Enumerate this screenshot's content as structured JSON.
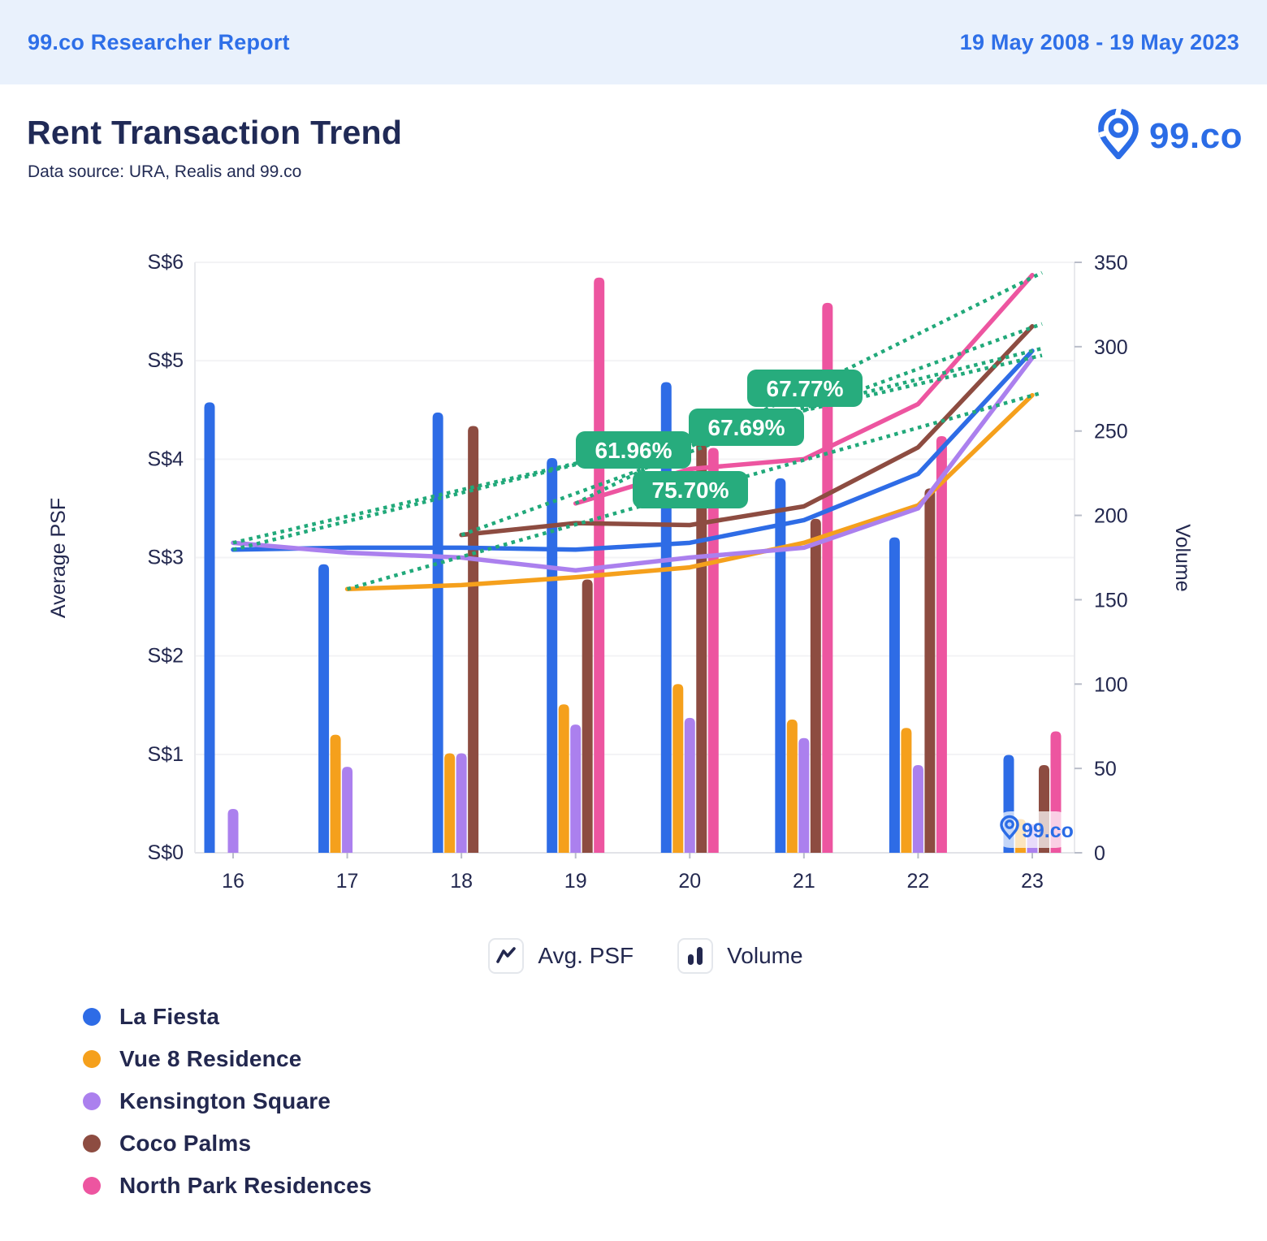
{
  "banner": {
    "left_text": "99.co Researcher Report",
    "right_text": "19 May 2008 - 19 May 2023"
  },
  "header": {
    "title": "Rent Transaction Trend",
    "subtitle": "Data source: URA, Realis and 99.co",
    "brand": "99.co"
  },
  "mode_legend": [
    {
      "label": "Avg. PSF",
      "icon": "line-chart-icon"
    },
    {
      "label": "Volume",
      "icon": "bar-chart-icon"
    }
  ],
  "watermark": {
    "text": "99.co"
  },
  "colors": {
    "banner_bg": "#e9f1fc",
    "banner_text": "#2e6fe8",
    "navy": "#23284f",
    "brand_blue": "#2b6ce6",
    "pill_green": "#27ac7d",
    "trend_green": "#21a97a",
    "grid": "#f3f3f5",
    "axis": "#e8e9ed",
    "tick": "#b9bdc9"
  },
  "chart_data": {
    "type": "combo bar+line",
    "x_labels": [
      "16",
      "17",
      "18",
      "19",
      "20",
      "21",
      "22",
      "23"
    ],
    "left_axis": {
      "title": "Average PSF",
      "tick_labels": [
        "S$0",
        "S$1",
        "S$2",
        "S$3",
        "S$4",
        "S$5",
        "S$6"
      ],
      "min": 0,
      "max": 6
    },
    "right_axis": {
      "title": "Volume",
      "tick_labels": [
        "0",
        "50",
        "100",
        "150",
        "200",
        "250",
        "300",
        "350"
      ],
      "min": 0,
      "max": 350
    },
    "grid": true,
    "legend_position": "bottom",
    "series": [
      {
        "name": "La Fiesta",
        "color": "#2e6ce6",
        "avg_psf": [
          3.08,
          3.1,
          3.1,
          3.08,
          3.15,
          3.38,
          3.85,
          5.1
        ],
        "volume": [
          267,
          171,
          261,
          234,
          279,
          222,
          187,
          58
        ]
      },
      {
        "name": "Vue 8 Residence",
        "color": "#f5a01c",
        "avg_psf": [
          null,
          2.68,
          2.72,
          2.8,
          2.9,
          3.15,
          3.53,
          4.65
        ],
        "volume": [
          null,
          70,
          59,
          88,
          100,
          79,
          74,
          20
        ]
      },
      {
        "name": "Kensington Square",
        "color": "#ab80ee",
        "avg_psf": [
          3.15,
          3.05,
          3.0,
          2.87,
          3.0,
          3.1,
          3.5,
          5.03
        ],
        "volume": [
          26,
          51,
          59,
          76,
          80,
          68,
          52,
          17
        ]
      },
      {
        "name": "Coco Palms",
        "color": "#8d4c41",
        "avg_psf": [
          null,
          null,
          3.23,
          3.35,
          3.33,
          3.52,
          4.12,
          5.35
        ],
        "volume": [
          null,
          null,
          253,
          162,
          244,
          198,
          216,
          52
        ]
      },
      {
        "name": "North Park Residences",
        "color": "#ed55a0",
        "avg_psf": [
          null,
          null,
          null,
          3.55,
          3.9,
          4.0,
          4.56,
          5.87
        ],
        "volume": [
          null,
          null,
          null,
          341,
          240,
          326,
          247,
          72
        ]
      }
    ],
    "trend_labels": [
      {
        "text": "61.96%",
        "x": 780,
        "y": 554
      },
      {
        "text": "75.70%",
        "x": 850,
        "y": 603
      },
      {
        "text": "67.69%",
        "x": 919,
        "y": 526
      },
      {
        "text": "67.77%",
        "x": 991,
        "y": 478
      }
    ]
  }
}
